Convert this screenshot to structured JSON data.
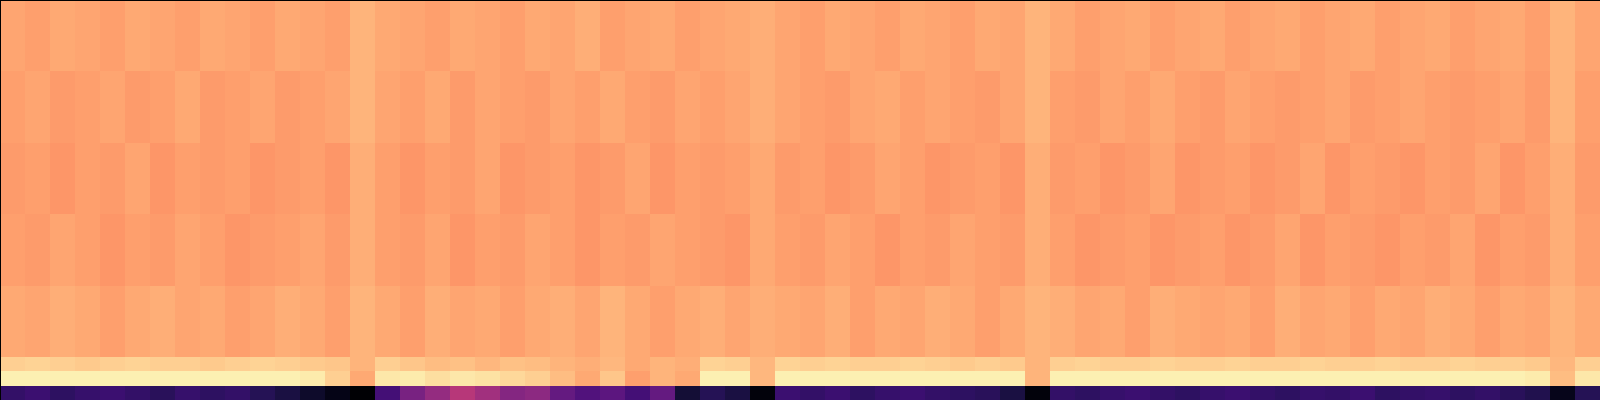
{
  "chart_data": {
    "type": "heatmap",
    "color": "magma",
    "tick_labels": false,
    "xlim": [
      0,
      64
    ],
    "ylim": [
      0,
      28
    ],
    "color_range": [
      0,
      1
    ],
    "y_edges": [
      0,
      1,
      2,
      3,
      8,
      13,
      18,
      23,
      28
    ],
    "cells": [
      [
        0.18,
        0.2,
        0.17,
        0.19,
        0.2,
        0.18,
        0.16,
        0.19,
        0.17,
        0.18,
        0.15,
        0.12,
        0.08,
        0.04,
        0,
        0.22,
        0.35,
        0.42,
        0.5,
        0.45,
        0.38,
        0.4,
        0.3,
        0.25,
        0.28,
        0.22,
        0.3,
        0.1,
        0.15,
        0.12,
        0.02,
        0.2,
        0.18,
        0.2,
        0.17,
        0.19,
        0.2,
        0.18,
        0.17,
        0.16,
        0.12,
        0.02,
        0.18,
        0.17,
        0.19,
        0.2,
        0.18,
        0.17,
        0.19,
        0.2,
        0.18,
        0.17,
        0.19,
        0.18,
        0.2,
        0.17,
        0.18,
        0.19,
        0.17,
        0.18,
        0.16,
        0.14,
        0.05,
        0.15
      ],
      [
        0.97,
        0.97,
        0.97,
        0.97,
        0.97,
        0.97,
        0.97,
        0.97,
        0.97,
        0.97,
        0.97,
        0.97,
        0.96,
        0.9,
        0.82,
        0.95,
        0.96,
        0.93,
        0.95,
        0.94,
        0.92,
        0.9,
        0.86,
        0.82,
        0.88,
        0.8,
        0.84,
        0.82,
        0.97,
        0.97,
        0.85,
        0.97,
        0.97,
        0.97,
        0.97,
        0.97,
        0.97,
        0.97,
        0.97,
        0.97,
        0.97,
        0.84,
        0.97,
        0.97,
        0.97,
        0.97,
        0.97,
        0.97,
        0.97,
        0.97,
        0.97,
        0.97,
        0.97,
        0.97,
        0.97,
        0.97,
        0.97,
        0.97,
        0.97,
        0.97,
        0.97,
        0.96,
        0.86,
        0.95
      ],
      [
        0.9,
        0.91,
        0.9,
        0.89,
        0.9,
        0.91,
        0.9,
        0.9,
        0.89,
        0.9,
        0.91,
        0.9,
        0.89,
        0.88,
        0.84,
        0.9,
        0.88,
        0.86,
        0.87,
        0.85,
        0.87,
        0.86,
        0.84,
        0.83,
        0.85,
        0.82,
        0.84,
        0.83,
        0.91,
        0.9,
        0.85,
        0.91,
        0.9,
        0.91,
        0.9,
        0.9,
        0.91,
        0.9,
        0.89,
        0.9,
        0.89,
        0.84,
        0.9,
        0.91,
        0.9,
        0.9,
        0.91,
        0.9,
        0.9,
        0.91,
        0.9,
        0.9,
        0.91,
        0.9,
        0.9,
        0.91,
        0.9,
        0.9,
        0.91,
        0.9,
        0.9,
        0.89,
        0.85,
        0.9
      ],
      [
        0.82,
        0.81,
        0.83,
        0.82,
        0.8,
        0.82,
        0.83,
        0.81,
        0.82,
        0.8,
        0.81,
        0.83,
        0.82,
        0.8,
        0.84,
        0.82,
        0.8,
        0.83,
        0.81,
        0.82,
        0.8,
        0.82,
        0.83,
        0.81,
        0.84,
        0.82,
        0.8,
        0.82,
        0.83,
        0.81,
        0.83,
        0.82,
        0.81,
        0.83,
        0.8,
        0.82,
        0.81,
        0.83,
        0.82,
        0.8,
        0.82,
        0.84,
        0.83,
        0.81,
        0.82,
        0.8,
        0.83,
        0.82,
        0.81,
        0.82,
        0.8,
        0.83,
        0.81,
        0.82,
        0.8,
        0.82,
        0.81,
        0.83,
        0.82,
        0.8,
        0.82,
        0.81,
        0.84,
        0.82
      ],
      [
        0.8,
        0.79,
        0.81,
        0.8,
        0.78,
        0.8,
        0.79,
        0.81,
        0.8,
        0.78,
        0.79,
        0.8,
        0.81,
        0.79,
        0.83,
        0.8,
        0.79,
        0.81,
        0.78,
        0.8,
        0.79,
        0.81,
        0.8,
        0.78,
        0.8,
        0.79,
        0.81,
        0.8,
        0.79,
        0.78,
        0.82,
        0.8,
        0.79,
        0.81,
        0.8,
        0.78,
        0.8,
        0.79,
        0.81,
        0.8,
        0.79,
        0.83,
        0.8,
        0.78,
        0.79,
        0.8,
        0.78,
        0.79,
        0.8,
        0.78,
        0.79,
        0.81,
        0.78,
        0.8,
        0.79,
        0.78,
        0.8,
        0.79,
        0.81,
        0.78,
        0.8,
        0.79,
        0.83,
        0.8
      ],
      [
        0.79,
        0.8,
        0.78,
        0.8,
        0.79,
        0.81,
        0.78,
        0.8,
        0.79,
        0.8,
        0.78,
        0.79,
        0.8,
        0.78,
        0.83,
        0.8,
        0.78,
        0.8,
        0.79,
        0.81,
        0.78,
        0.79,
        0.8,
        0.78,
        0.79,
        0.81,
        0.78,
        0.8,
        0.79,
        0.8,
        0.82,
        0.79,
        0.8,
        0.78,
        0.79,
        0.81,
        0.8,
        0.78,
        0.79,
        0.8,
        0.78,
        0.83,
        0.79,
        0.8,
        0.78,
        0.79,
        0.81,
        0.78,
        0.79,
        0.8,
        0.78,
        0.79,
        0.81,
        0.78,
        0.8,
        0.79,
        0.78,
        0.8,
        0.79,
        0.81,
        0.78,
        0.8,
        0.83,
        0.79
      ],
      [
        0.8,
        0.81,
        0.79,
        0.8,
        0.81,
        0.79,
        0.8,
        0.82,
        0.79,
        0.8,
        0.81,
        0.79,
        0.8,
        0.81,
        0.84,
        0.81,
        0.8,
        0.82,
        0.79,
        0.81,
        0.8,
        0.79,
        0.81,
        0.8,
        0.82,
        0.8,
        0.79,
        0.81,
        0.8,
        0.81,
        0.83,
        0.81,
        0.8,
        0.79,
        0.81,
        0.82,
        0.8,
        0.81,
        0.8,
        0.79,
        0.81,
        0.84,
        0.8,
        0.79,
        0.81,
        0.8,
        0.82,
        0.8,
        0.79,
        0.81,
        0.8,
        0.79,
        0.8,
        0.81,
        0.79,
        0.8,
        0.81,
        0.8,
        0.79,
        0.8,
        0.81,
        0.79,
        0.84,
        0.8
      ],
      [
        0.81,
        0.8,
        0.82,
        0.81,
        0.8,
        0.82,
        0.81,
        0.8,
        0.82,
        0.81,
        0.8,
        0.82,
        0.81,
        0.8,
        0.84,
        0.82,
        0.81,
        0.8,
        0.82,
        0.81,
        0.8,
        0.82,
        0.81,
        0.83,
        0.8,
        0.81,
        0.82,
        0.8,
        0.81,
        0.82,
        0.83,
        0.81,
        0.8,
        0.82,
        0.81,
        0.8,
        0.82,
        0.81,
        0.8,
        0.82,
        0.81,
        0.84,
        0.82,
        0.8,
        0.81,
        0.82,
        0.8,
        0.81,
        0.82,
        0.8,
        0.81,
        0.82,
        0.8,
        0.81,
        0.82,
        0.8,
        0.81,
        0.82,
        0.8,
        0.81,
        0.82,
        0.8,
        0.84,
        0.81
      ]
    ]
  }
}
